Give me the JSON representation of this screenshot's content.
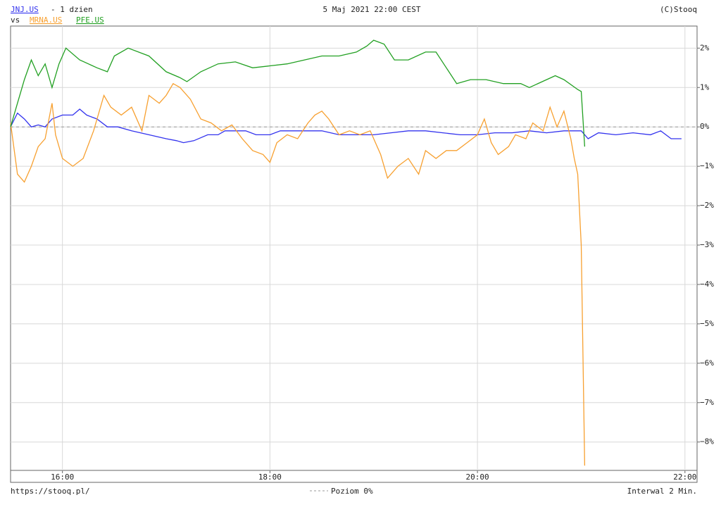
{
  "chart_data": {
    "type": "line",
    "subtitle": "- 1 dzien",
    "vs_label": "vs",
    "title": "5 Maj 2021 22:00 CEST",
    "copyright": "(C)Stooq",
    "source": "https://stooq.pl/",
    "interval": "Interwal 2 Min.",
    "reference_line": {
      "value": 0,
      "label": "Poziom 0%",
      "color": "#999999"
    },
    "xlim": [
      "15:30",
      "22:07"
    ],
    "xticks": [
      "16:00",
      "18:00",
      "20:00",
      "22:00"
    ],
    "ylim": [
      -8.72,
      2.56
    ],
    "yticks": [
      {
        "value": 2,
        "label": "2%"
      },
      {
        "value": 1,
        "label": "1%"
      },
      {
        "value": 0,
        "label": "0%"
      },
      {
        "value": -1,
        "label": "−1%"
      },
      {
        "value": -2,
        "label": "−2%"
      },
      {
        "value": -3,
        "label": "−3%"
      },
      {
        "value": -4,
        "label": "−4%"
      },
      {
        "value": -5,
        "label": "−5%"
      },
      {
        "value": -6,
        "label": "−6%"
      },
      {
        "value": -7,
        "label": "−7%"
      },
      {
        "value": -8,
        "label": "−8%"
      }
    ],
    "grid": true,
    "series": [
      {
        "name": "JNJ.US",
        "color": "#3333ee",
        "x": [
          "15:30",
          "15:34",
          "15:38",
          "15:42",
          "15:46",
          "15:50",
          "15:54",
          "16:00",
          "16:06",
          "16:10",
          "16:14",
          "16:20",
          "16:26",
          "16:32",
          "16:40",
          "16:50",
          "17:00",
          "17:06",
          "17:10",
          "17:16",
          "17:24",
          "17:30",
          "17:34",
          "17:40",
          "17:46",
          "17:52",
          "18:00",
          "18:06",
          "18:16",
          "18:24",
          "18:30",
          "18:40",
          "18:50",
          "19:00",
          "19:10",
          "19:20",
          "19:30",
          "19:40",
          "19:50",
          "20:00",
          "20:10",
          "20:20",
          "20:30",
          "20:40",
          "20:50",
          "21:00",
          "21:04",
          "21:10",
          "21:20",
          "21:30",
          "21:40",
          "21:46",
          "21:52",
          "21:58"
        ],
        "values": [
          0,
          0.35,
          0.2,
          0.0,
          0.05,
          0.0,
          0.2,
          0.3,
          0.3,
          0.45,
          0.3,
          0.2,
          0.0,
          0.0,
          -0.1,
          -0.2,
          -0.3,
          -0.35,
          -0.4,
          -0.35,
          -0.2,
          -0.2,
          -0.1,
          -0.1,
          -0.1,
          -0.2,
          -0.2,
          -0.1,
          -0.1,
          -0.1,
          -0.1,
          -0.2,
          -0.2,
          -0.2,
          -0.15,
          -0.1,
          -0.1,
          -0.15,
          -0.2,
          -0.2,
          -0.15,
          -0.15,
          -0.1,
          -0.15,
          -0.1,
          -0.1,
          -0.3,
          -0.15,
          -0.2,
          -0.15,
          -0.2,
          -0.1,
          -0.3,
          -0.3
        ]
      },
      {
        "name": "MRNA.US",
        "color": "#f7a030",
        "x": [
          "15:30",
          "15:34",
          "15:38",
          "15:42",
          "15:46",
          "15:50",
          "15:54",
          "15:56",
          "16:00",
          "16:06",
          "16:12",
          "16:18",
          "16:24",
          "16:28",
          "16:34",
          "16:40",
          "16:46",
          "16:50",
          "16:56",
          "17:00",
          "17:04",
          "17:08",
          "17:14",
          "17:20",
          "17:26",
          "17:32",
          "17:38",
          "17:44",
          "17:50",
          "17:56",
          "18:00",
          "18:04",
          "18:10",
          "18:16",
          "18:22",
          "18:26",
          "18:30",
          "18:34",
          "18:40",
          "18:46",
          "18:52",
          "18:58",
          "19:04",
          "19:08",
          "19:14",
          "19:20",
          "19:26",
          "19:30",
          "19:36",
          "19:42",
          "19:48",
          "19:54",
          "20:00",
          "20:04",
          "20:08",
          "20:12",
          "20:18",
          "20:22",
          "20:28",
          "20:32",
          "20:38",
          "20:42",
          "20:46",
          "20:50",
          "20:54",
          "20:56",
          "20:58",
          "21:00",
          "21:02"
        ],
        "values": [
          0.1,
          -1.2,
          -1.4,
          -1.0,
          -0.5,
          -0.3,
          0.6,
          -0.2,
          -0.8,
          -1.0,
          -0.8,
          -0.1,
          0.8,
          0.5,
          0.3,
          0.5,
          -0.1,
          0.8,
          0.6,
          0.8,
          1.1,
          1.0,
          0.7,
          0.2,
          0.1,
          -0.1,
          0.05,
          -0.3,
          -0.6,
          -0.7,
          -0.9,
          -0.4,
          -0.2,
          -0.3,
          0.1,
          0.3,
          0.4,
          0.2,
          -0.2,
          -0.1,
          -0.2,
          -0.1,
          -0.7,
          -1.3,
          -1.0,
          -0.8,
          -1.2,
          -0.6,
          -0.8,
          -0.6,
          -0.6,
          -0.4,
          -0.2,
          0.2,
          -0.4,
          -0.7,
          -0.5,
          -0.2,
          -0.3,
          0.1,
          -0.1,
          0.5,
          0.0,
          0.4,
          -0.3,
          -0.8,
          -1.2,
          -3.0,
          -8.6
        ]
      },
      {
        "name": "PFE.US",
        "color": "#22a022",
        "x": [
          "15:30",
          "15:34",
          "15:38",
          "15:42",
          "15:46",
          "15:50",
          "15:54",
          "15:58",
          "16:02",
          "16:10",
          "16:20",
          "16:26",
          "16:30",
          "16:38",
          "16:50",
          "17:00",
          "17:08",
          "17:12",
          "17:20",
          "17:30",
          "17:40",
          "17:50",
          "18:00",
          "18:10",
          "18:20",
          "18:30",
          "18:40",
          "18:50",
          "18:56",
          "19:00",
          "19:06",
          "19:12",
          "19:20",
          "19:30",
          "19:36",
          "19:42",
          "19:48",
          "19:56",
          "20:05",
          "20:15",
          "20:25",
          "20:30",
          "20:40",
          "20:45",
          "20:50",
          "20:58",
          "21:00",
          "21:02"
        ],
        "values": [
          0,
          0.6,
          1.2,
          1.7,
          1.3,
          1.6,
          1.0,
          1.6,
          2.0,
          1.7,
          1.5,
          1.4,
          1.8,
          2.0,
          1.8,
          1.4,
          1.25,
          1.15,
          1.4,
          1.6,
          1.65,
          1.5,
          1.55,
          1.6,
          1.7,
          1.8,
          1.8,
          1.9,
          2.05,
          2.2,
          2.1,
          1.7,
          1.7,
          1.9,
          1.9,
          1.5,
          1.1,
          1.2,
          1.2,
          1.1,
          1.1,
          1.0,
          1.2,
          1.3,
          1.2,
          0.95,
          0.9,
          -0.5
        ]
      }
    ]
  }
}
